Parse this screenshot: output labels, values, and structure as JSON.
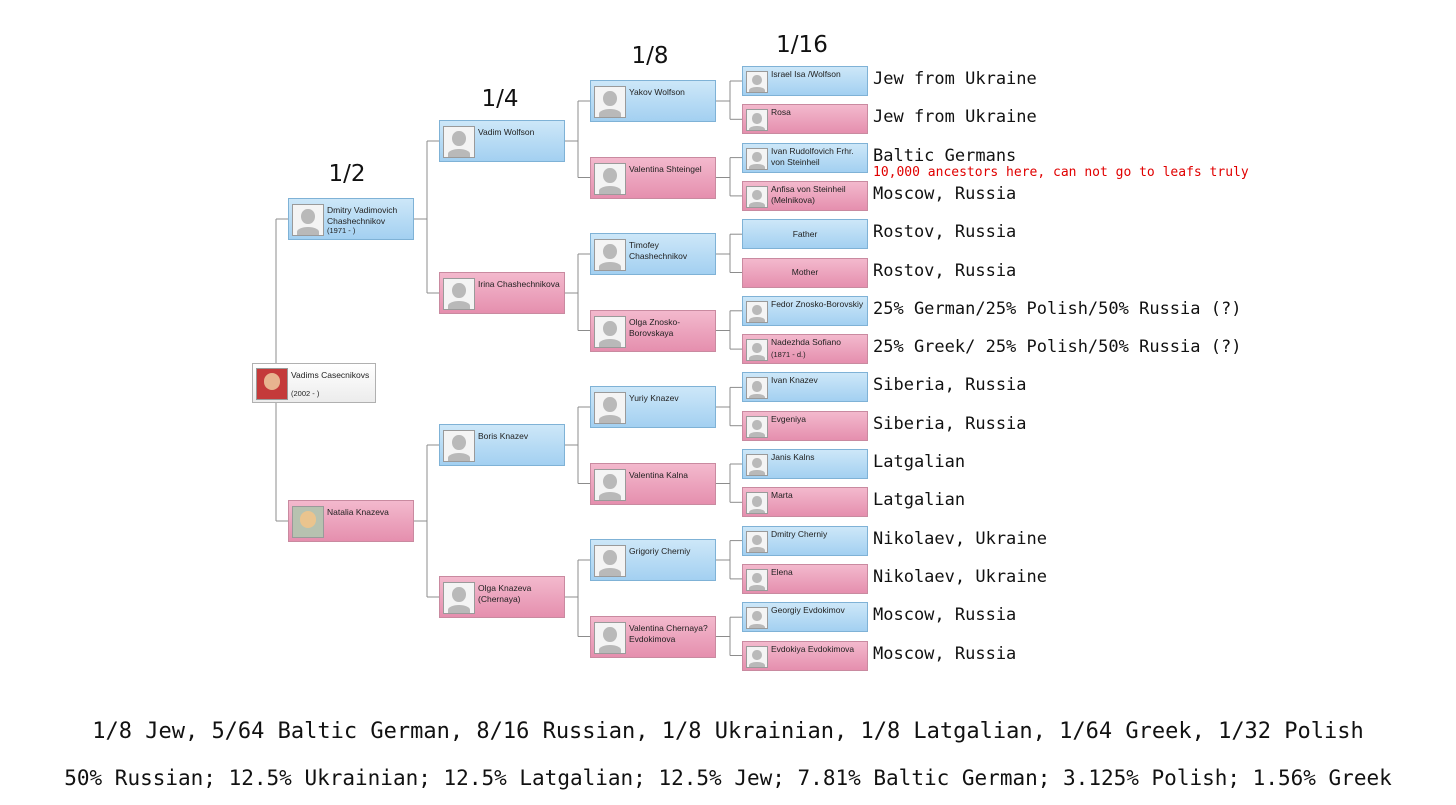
{
  "generation_labels": [
    "1/2",
    "1/4",
    "1/8",
    "1/16"
  ],
  "root": {
    "name": "Vadims Casecnikovs",
    "years": "(2002 - )"
  },
  "gen1": [
    {
      "name": "Dmitry Vadimovich Chashechnikov",
      "years": "(1971 - )"
    },
    {
      "name": "Natalia Knazeva",
      "years": ""
    }
  ],
  "gen2": [
    {
      "name": "Vadim Wolfson",
      "years": ""
    },
    {
      "name": "Irina Chashechnikova",
      "years": ""
    },
    {
      "name": "Boris Knazev",
      "years": ""
    },
    {
      "name": "Olga Knazeva (Chernaya)",
      "years": ""
    }
  ],
  "gen3": [
    {
      "name": "Yakov Wolfson",
      "years": ""
    },
    {
      "name": "Valentina Shteingel",
      "years": ""
    },
    {
      "name": "Timofey Chashechnikov",
      "years": ""
    },
    {
      "name": "Olga Znosko-Borovskaya",
      "years": ""
    },
    {
      "name": "Yuriy Knazev",
      "years": ""
    },
    {
      "name": "Valentina Kalna",
      "years": ""
    },
    {
      "name": "Grigoriy Cherniy",
      "years": ""
    },
    {
      "name": "Valentina Chernaya? Evdokimova",
      "years": ""
    }
  ],
  "gen4": [
    {
      "name": "Israel Isa /Wolfson",
      "years": "",
      "origin": "Jew from Ukraine"
    },
    {
      "name": "Rosa",
      "years": "",
      "origin": "Jew from Ukraine"
    },
    {
      "name": "Ivan Rudolfovich Frhr. von Steinheil",
      "years": "",
      "origin": "Baltic Germans"
    },
    {
      "name": "Anfisa von Steinheil (Melnikova)",
      "years": "",
      "origin": "Moscow, Russia"
    },
    {
      "name": "Father",
      "years": "",
      "origin": "Rostov, Russia"
    },
    {
      "name": "Mother",
      "years": "",
      "origin": "Rostov, Russia"
    },
    {
      "name": "Fedor Znosko-Borovskiy",
      "years": "",
      "origin": "25% German/25% Polish/50% Russia (?)"
    },
    {
      "name": "Nadezhda Sofiano",
      "years": "(1871 - d.)",
      "origin": "25% Greek/ 25% Polish/50% Russia (?)"
    },
    {
      "name": "Ivan Knazev",
      "years": "",
      "origin": "Siberia, Russia"
    },
    {
      "name": "Evgeniya",
      "years": "",
      "origin": "Siberia, Russia"
    },
    {
      "name": "Janis Kalns",
      "years": "",
      "origin": "Latgalian"
    },
    {
      "name": "Marta",
      "years": "",
      "origin": "Latgalian"
    },
    {
      "name": "Dmitry Cherniy",
      "years": "",
      "origin": "Nikolaev, Ukraine"
    },
    {
      "name": "Elena",
      "years": "",
      "origin": "Nikolaev, Ukraine"
    },
    {
      "name": "Georgiy Evdokimov",
      "years": "",
      "origin": "Moscow, Russia"
    },
    {
      "name": "Evdokiya Evdokimova",
      "years": "",
      "origin": "Moscow, Russia"
    }
  ],
  "note": "10,000 ancestors here, can not go to leafs truly",
  "summary_fractions": "1/8 Jew, 5/64 Baltic German, 8/16 Russian, 1/8 Ukrainian, 1/8 Latgalian, 1/64 Greek, 1/32 Polish",
  "summary_percent": "50% Russian; 12.5% Ukrainian; 12.5% Latgalian; 12.5% Jew; 7.81% Baltic German; 3.125% Polish; 1.56% Greek",
  "colors": {
    "male": "#a3d0f1",
    "female": "#e58fae",
    "connector": "#8c8c8c",
    "note": "#e00000"
  }
}
